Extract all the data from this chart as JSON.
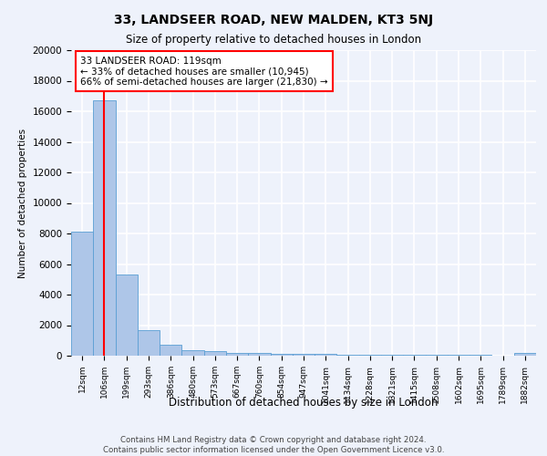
{
  "title": "33, LANDSEER ROAD, NEW MALDEN, KT3 5NJ",
  "subtitle": "Size of property relative to detached houses in London",
  "xlabel": "Distribution of detached houses by size in London",
  "ylabel": "Number of detached properties",
  "categories": [
    "12sqm",
    "106sqm",
    "199sqm",
    "293sqm",
    "386sqm",
    "480sqm",
    "573sqm",
    "667sqm",
    "760sqm",
    "854sqm",
    "947sqm",
    "1041sqm",
    "1134sqm",
    "1228sqm",
    "1321sqm",
    "1415sqm",
    "1508sqm",
    "1602sqm",
    "1695sqm",
    "1789sqm",
    "1882sqm"
  ],
  "values": [
    8100,
    16700,
    5300,
    1700,
    700,
    350,
    280,
    200,
    150,
    130,
    110,
    90,
    80,
    70,
    60,
    50,
    40,
    35,
    30,
    25,
    200
  ],
  "bar_color": "#aec6e8",
  "bar_edge_color": "#5a9fd4",
  "background_color": "#eef2fb",
  "grid_color": "#ffffff",
  "red_line_x": 1,
  "annotation_title": "33 LANDSEER ROAD: 119sqm",
  "annotation_line1": "← 33% of detached houses are smaller (10,945)",
  "annotation_line2": "66% of semi-detached houses are larger (21,830) →",
  "footnote1": "Contains HM Land Registry data © Crown copyright and database right 2024.",
  "footnote2": "Contains public sector information licensed under the Open Government Licence v3.0.",
  "ylim": [
    0,
    20000
  ],
  "yticks": [
    0,
    2000,
    4000,
    6000,
    8000,
    10000,
    12000,
    14000,
    16000,
    18000,
    20000
  ]
}
